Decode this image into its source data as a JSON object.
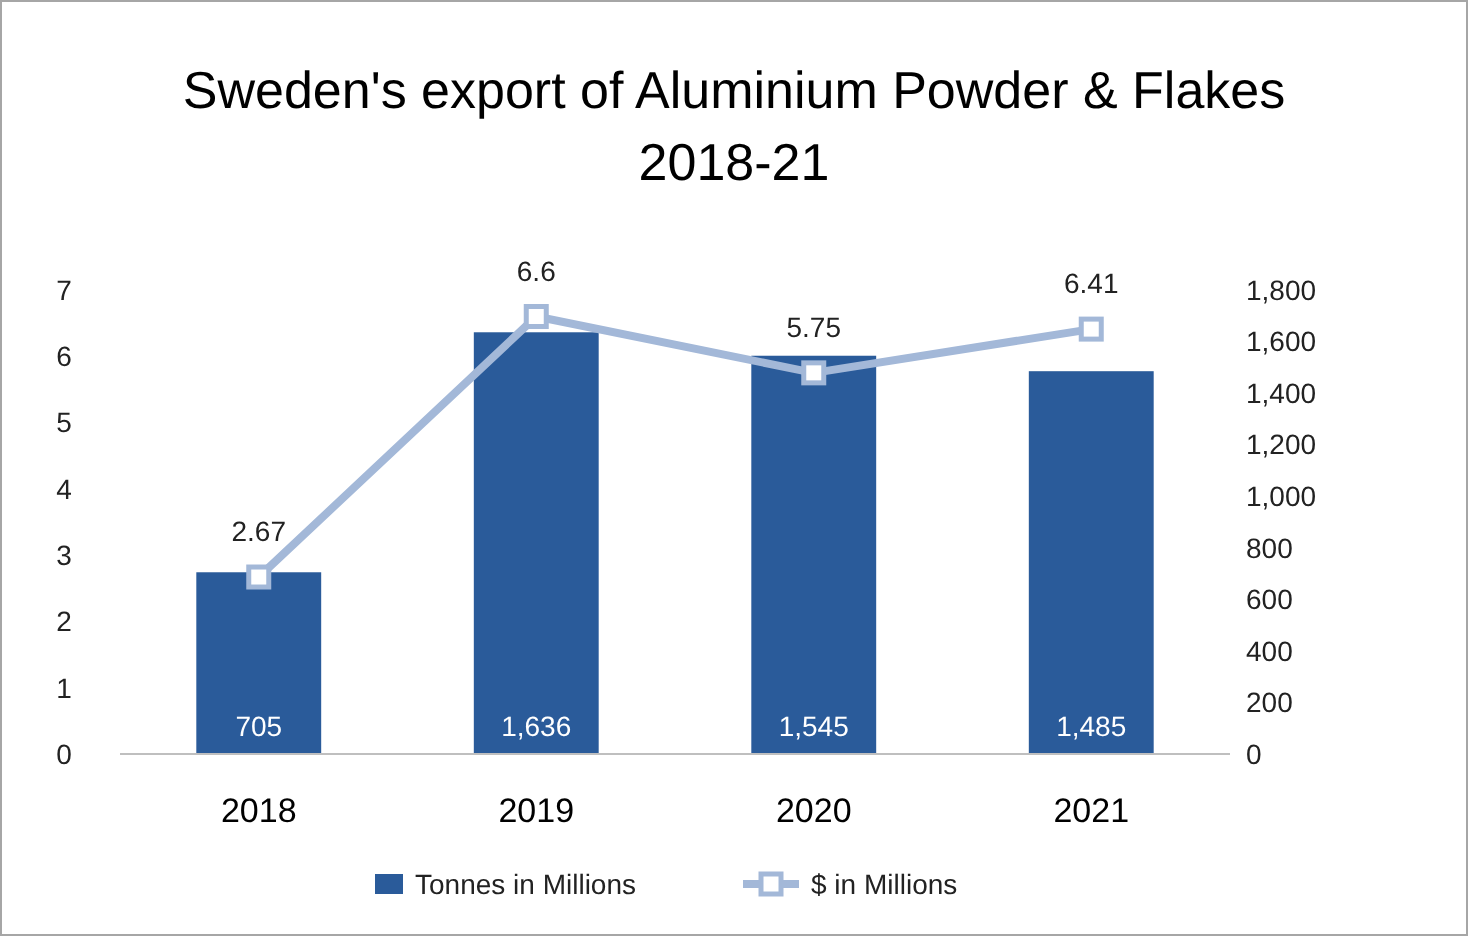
{
  "chart_data": {
    "type": "bar",
    "title": "Sweden's export of Aluminium Powder & Flakes\n2018-21",
    "categories": [
      "2018",
      "2019",
      "2020",
      "2021"
    ],
    "series": [
      {
        "name": "Tonnes in Millions",
        "axis": "y2",
        "color": "#2a5b9a",
        "values": [
          705,
          1636,
          1545,
          1485
        ],
        "value_labels": [
          "705",
          "1,636",
          "1,545",
          "1,485"
        ]
      },
      {
        "name": "$ in Millions",
        "type": "line",
        "axis": "y",
        "color": "#a3b8d8",
        "marker": "square",
        "values": [
          2.67,
          6.6,
          5.75,
          6.41
        ],
        "value_labels": [
          "2.67",
          "6.6",
          "5.75",
          "6.41"
        ]
      }
    ],
    "ylim": [
      0,
      7
    ],
    "yticks": [
      0,
      1,
      2,
      3,
      4,
      5,
      6,
      7
    ],
    "y2lim": [
      0,
      1800
    ],
    "y2ticks": [
      0,
      200,
      400,
      600,
      800,
      {
        "value": 1000,
        "label": "1,000"
      },
      {
        "value": 1200,
        "label": "1,200"
      },
      {
        "value": 1400,
        "label": "1,400"
      },
      {
        "value": 1600,
        "label": "1,600"
      },
      {
        "value": 1800,
        "label": "1,800"
      }
    ],
    "legend": "bottom",
    "grid": false
  }
}
